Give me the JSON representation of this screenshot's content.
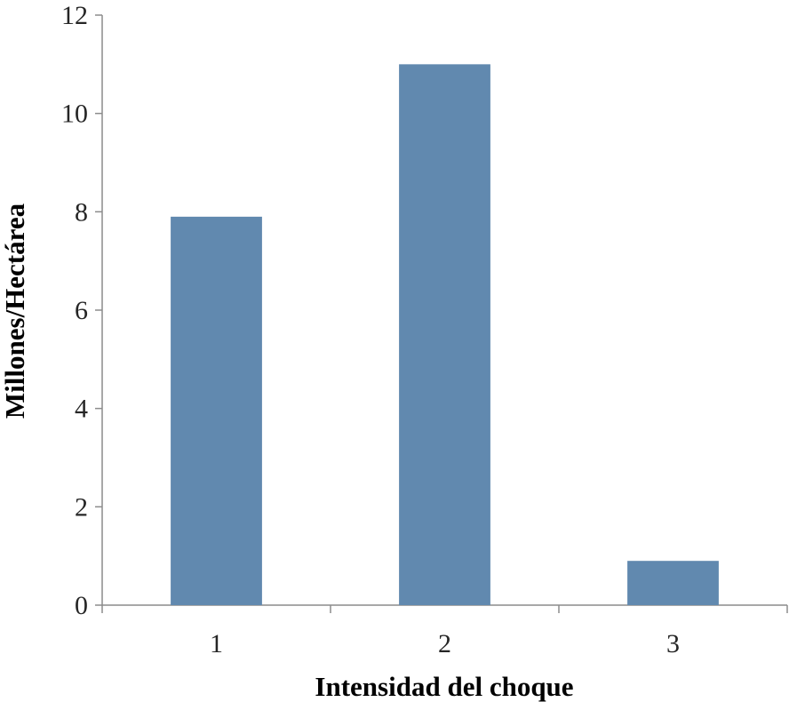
{
  "chart_data": {
    "type": "bar",
    "categories": [
      "1",
      "2",
      "3"
    ],
    "values": [
      7.9,
      11.0,
      0.9
    ],
    "title": "",
    "xlabel": "Intensidad del choque",
    "ylabel": "Millones/Hectárea",
    "ylim": [
      0,
      12
    ],
    "yticks": [
      "0",
      "2",
      "4",
      "6",
      "8",
      "10",
      "12"
    ],
    "grid": false,
    "legend": "none",
    "bar_color": "#6189af"
  }
}
